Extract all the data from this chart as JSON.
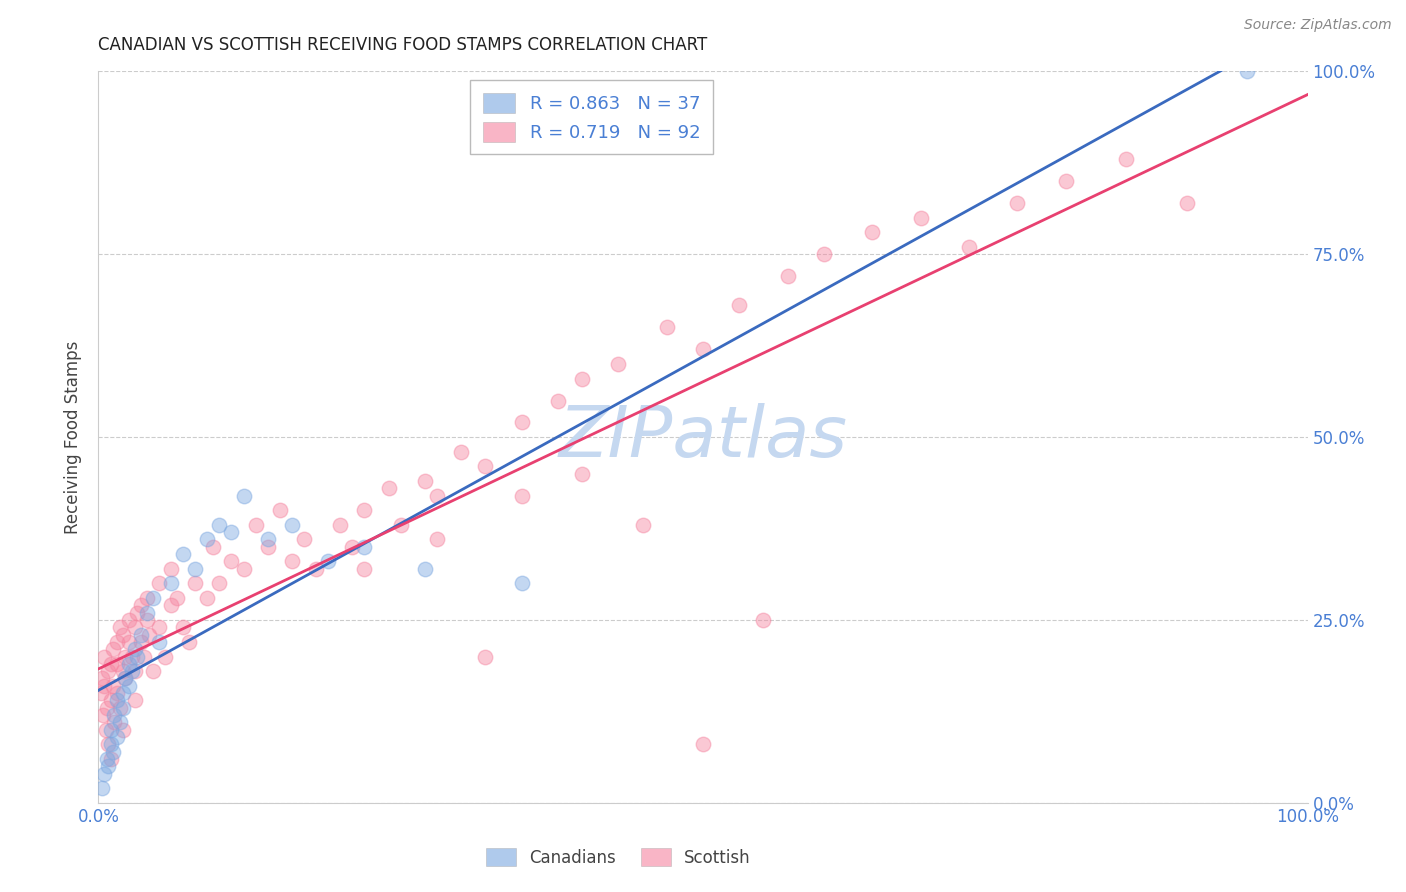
{
  "title": "CANADIAN VS SCOTTISH RECEIVING FOOD STAMPS CORRELATION CHART",
  "source": "Source: ZipAtlas.com",
  "ylabel": "Receiving Food Stamps",
  "ytick_values": [
    0,
    25,
    50,
    75,
    100
  ],
  "canadian_R": 0.863,
  "canadian_N": 37,
  "scottish_R": 0.719,
  "scottish_N": 92,
  "canadian_color": "#7ba7e0",
  "scottish_color": "#f585a0",
  "canadian_line_color": "#3a6abf",
  "scottish_line_color": "#e84070",
  "background_color": "#ffffff",
  "grid_color": "#cccccc",
  "axis_label_color": "#4a7fd4",
  "title_color": "#222222",
  "watermark_color": "#c5d8f0",
  "canadian_x": [
    0.3,
    0.5,
    0.7,
    0.8,
    1.0,
    1.0,
    1.2,
    1.3,
    1.5,
    1.5,
    1.8,
    2.0,
    2.0,
    2.2,
    2.5,
    2.5,
    2.8,
    3.0,
    3.2,
    3.5,
    4.0,
    4.5,
    5.0,
    6.0,
    7.0,
    8.0,
    9.0,
    10.0,
    11.0,
    12.0,
    14.0,
    16.0,
    19.0,
    22.0,
    27.0,
    35.0,
    95.0
  ],
  "canadian_y": [
    2,
    4,
    6,
    5,
    8,
    10,
    7,
    12,
    9,
    14,
    11,
    15,
    13,
    17,
    16,
    19,
    18,
    21,
    20,
    23,
    26,
    28,
    22,
    30,
    34,
    32,
    36,
    38,
    37,
    42,
    36,
    38,
    33,
    35,
    32,
    30,
    100
  ],
  "scottish_x": [
    0.2,
    0.3,
    0.4,
    0.5,
    0.5,
    0.6,
    0.7,
    0.8,
    0.8,
    1.0,
    1.0,
    1.0,
    1.2,
    1.2,
    1.3,
    1.5,
    1.5,
    1.5,
    1.8,
    1.8,
    2.0,
    2.0,
    2.0,
    2.2,
    2.2,
    2.5,
    2.5,
    2.8,
    3.0,
    3.0,
    3.0,
    3.2,
    3.5,
    3.5,
    3.8,
    4.0,
    4.0,
    4.2,
    4.5,
    5.0,
    5.0,
    5.5,
    6.0,
    6.0,
    6.5,
    7.0,
    7.5,
    8.0,
    9.0,
    9.5,
    10.0,
    11.0,
    12.0,
    13.0,
    14.0,
    15.0,
    16.0,
    17.0,
    18.0,
    20.0,
    21.0,
    22.0,
    24.0,
    25.0,
    27.0,
    28.0,
    30.0,
    32.0,
    35.0,
    38.0,
    40.0,
    43.0,
    47.0,
    50.0,
    53.0,
    57.0,
    60.0,
    64.0,
    68.0,
    72.0,
    76.0,
    80.0,
    85.0,
    90.0,
    50.0,
    55.0,
    32.0,
    40.0,
    45.0,
    22.0,
    28.0,
    35.0
  ],
  "scottish_y": [
    15,
    17,
    12,
    20,
    16,
    10,
    13,
    18,
    8,
    14,
    19,
    6,
    16,
    21,
    11,
    15,
    22,
    19,
    13,
    24,
    18,
    23,
    10,
    17,
    20,
    22,
    25,
    20,
    18,
    24,
    14,
    26,
    22,
    27,
    20,
    25,
    28,
    23,
    18,
    24,
    30,
    20,
    27,
    32,
    28,
    24,
    22,
    30,
    28,
    35,
    30,
    33,
    32,
    38,
    35,
    40,
    33,
    36,
    32,
    38,
    35,
    40,
    43,
    38,
    44,
    42,
    48,
    46,
    52,
    55,
    58,
    60,
    65,
    62,
    68,
    72,
    75,
    78,
    80,
    76,
    82,
    85,
    88,
    82,
    8,
    25,
    20,
    45,
    38,
    32,
    36,
    42
  ]
}
